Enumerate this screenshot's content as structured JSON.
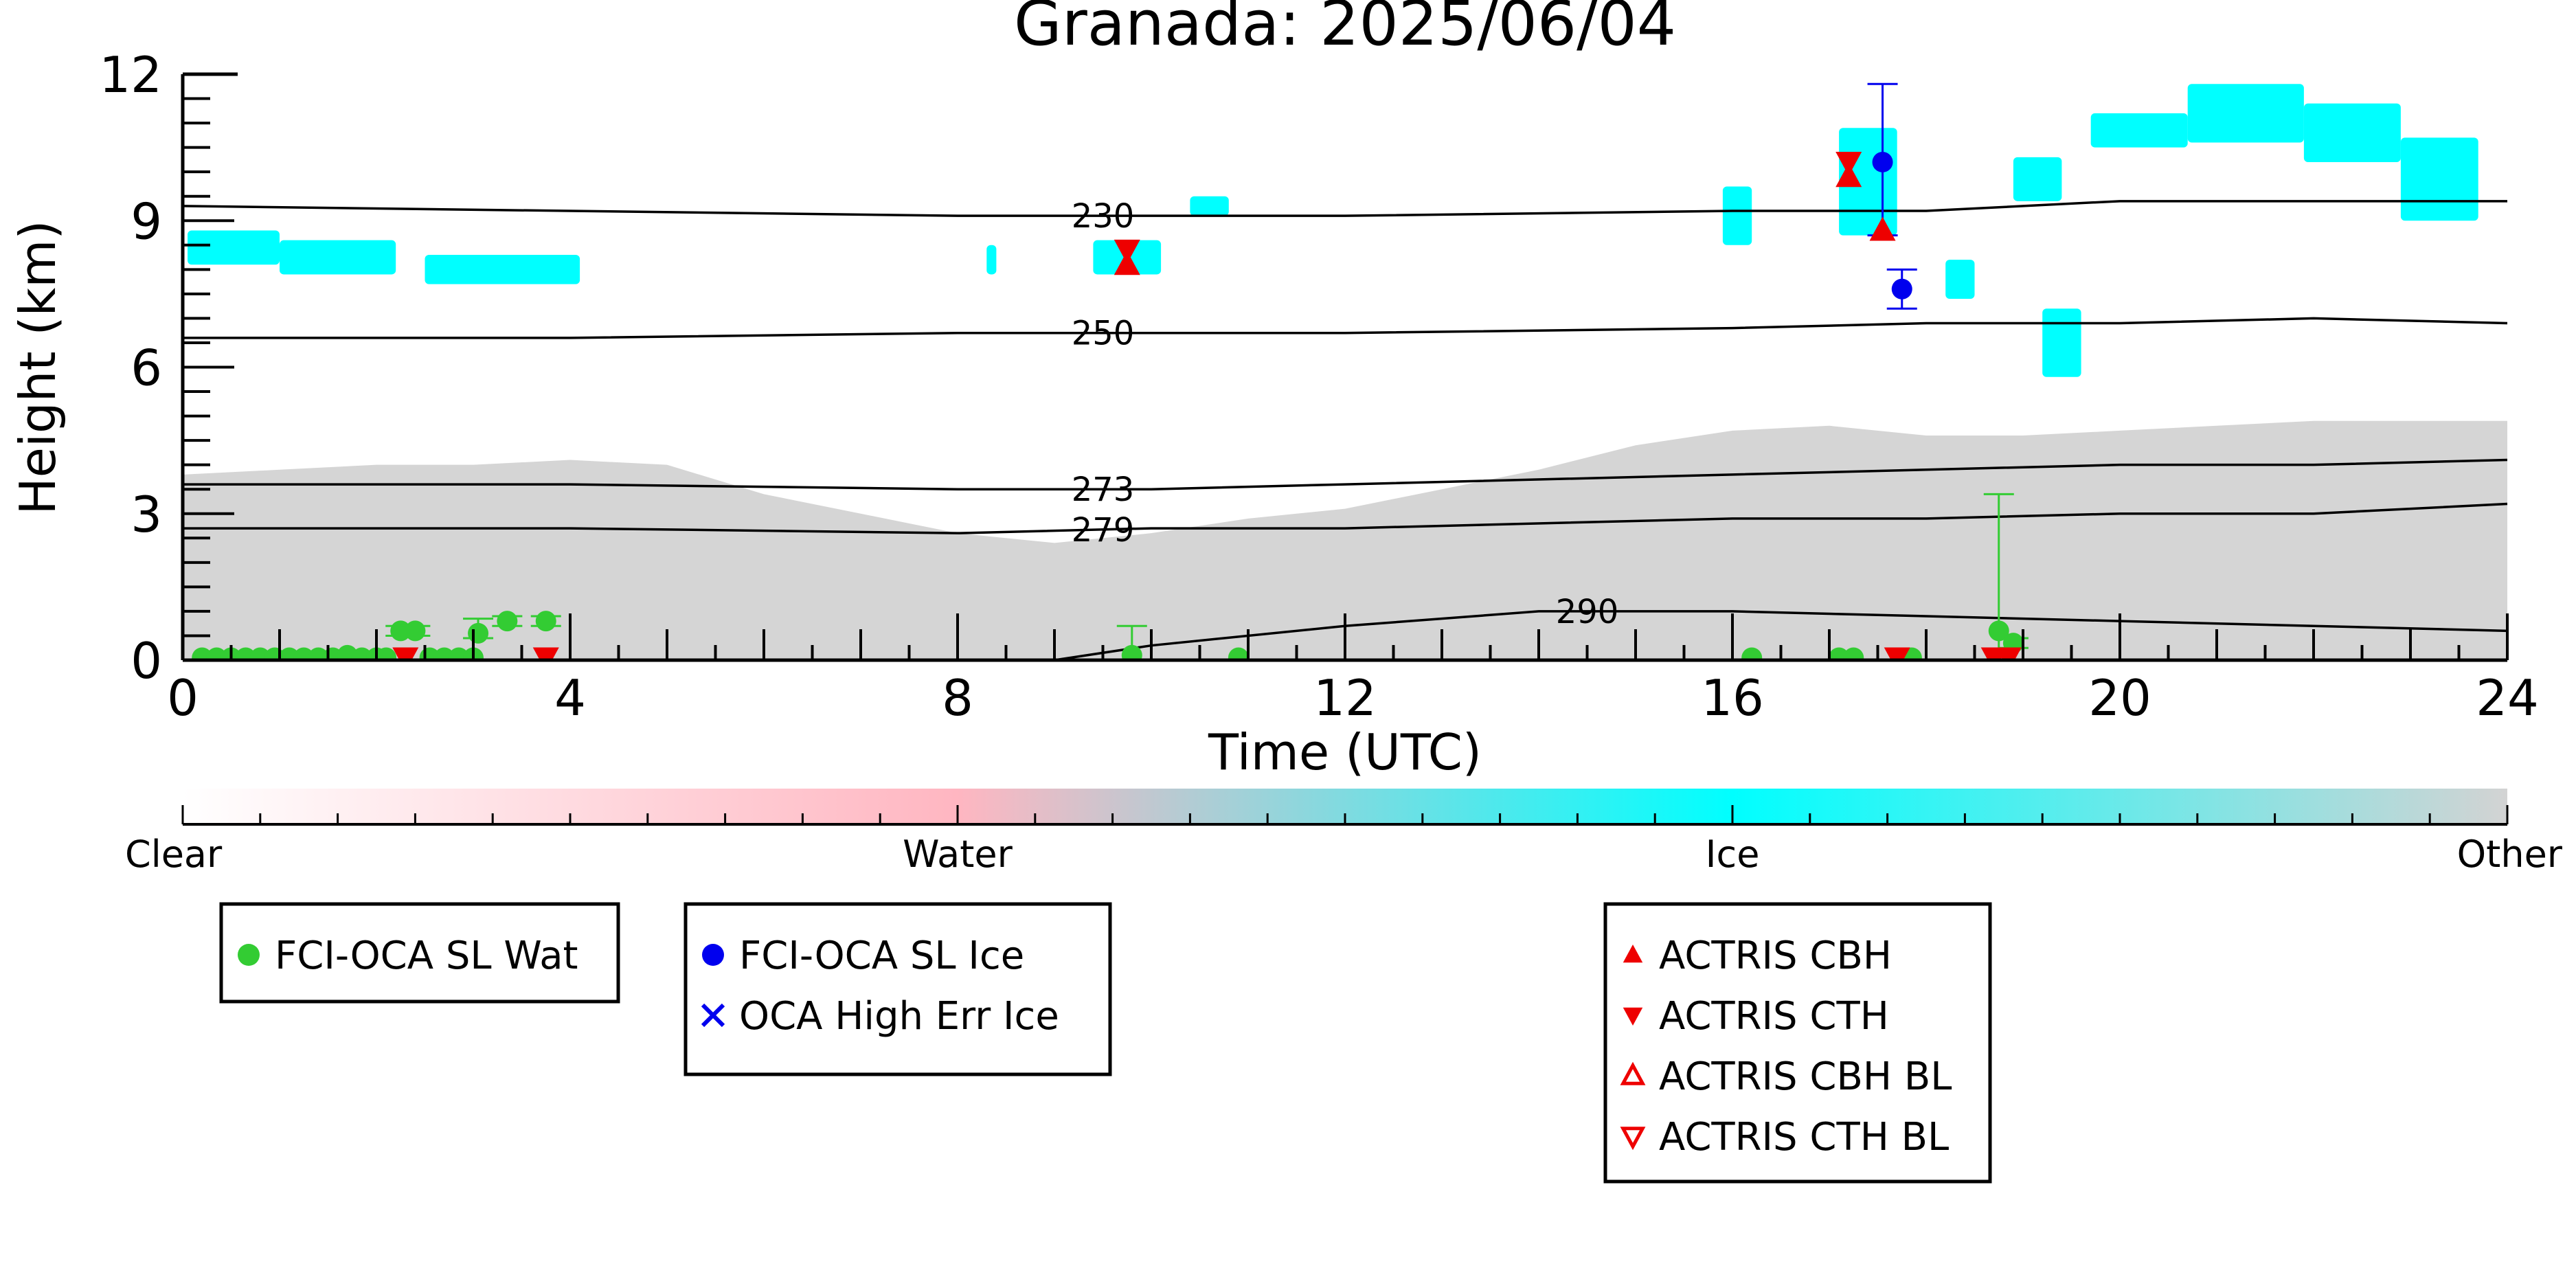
{
  "chart_data": {
    "type": "scatter",
    "title": "Granada: 2025/06/04",
    "xlabel": "Time (UTC)",
    "ylabel": "Height (km)",
    "xlim": [
      0,
      24
    ],
    "ylim": [
      0,
      12
    ],
    "x_ticks": [
      0,
      4,
      8,
      12,
      16,
      20,
      24
    ],
    "y_ticks": [
      0,
      3,
      6,
      9,
      12
    ],
    "background_classes": {
      "other_color": "#d3d3d3",
      "ice_color": "#00ffff",
      "other_regions": [
        {
          "x": [
            0,
            1,
            2,
            3,
            4,
            5,
            6,
            7,
            8,
            9,
            10,
            11,
            12,
            13,
            14,
            15,
            16,
            17,
            18,
            19,
            20,
            21,
            22,
            23,
            24
          ],
          "top": [
            3.8,
            3.9,
            4.0,
            4.0,
            4.1,
            4.0,
            3.4,
            3.0,
            2.6,
            2.4,
            2.6,
            2.9,
            3.1,
            3.5,
            3.9,
            4.4,
            4.7,
            4.8,
            4.6,
            4.6,
            4.7,
            4.8,
            4.9,
            4.9,
            4.9
          ]
        }
      ],
      "ice_regions": [
        {
          "x0": 0.05,
          "x1": 1.0,
          "y0": 8.1,
          "y1": 8.8
        },
        {
          "x0": 1.0,
          "x1": 2.2,
          "y0": 7.9,
          "y1": 8.6
        },
        {
          "x0": 2.5,
          "x1": 4.1,
          "y0": 7.7,
          "y1": 8.3
        },
        {
          "x0": 8.3,
          "x1": 8.4,
          "y0": 7.9,
          "y1": 8.5
        },
        {
          "x0": 9.4,
          "x1": 10.1,
          "y0": 7.9,
          "y1": 8.6
        },
        {
          "x0": 10.4,
          "x1": 10.8,
          "y0": 9.1,
          "y1": 9.5
        },
        {
          "x0": 15.9,
          "x1": 16.2,
          "y0": 8.5,
          "y1": 9.7
        },
        {
          "x0": 17.1,
          "x1": 17.7,
          "y0": 8.7,
          "y1": 10.9
        },
        {
          "x0": 18.9,
          "x1": 19.4,
          "y0": 9.4,
          "y1": 10.3
        },
        {
          "x0": 19.7,
          "x1": 20.7,
          "y0": 10.5,
          "y1": 11.2
        },
        {
          "x0": 20.7,
          "x1": 21.9,
          "y0": 10.6,
          "y1": 11.8
        },
        {
          "x0": 21.9,
          "x1": 22.9,
          "y0": 10.2,
          "y1": 11.4
        },
        {
          "x0": 22.9,
          "x1": 23.7,
          "y0": 9.0,
          "y1": 10.7
        },
        {
          "x0": 18.2,
          "x1": 18.5,
          "y0": 7.4,
          "y1": 8.2
        },
        {
          "x0": 19.2,
          "x1": 19.6,
          "y0": 5.8,
          "y1": 7.2
        }
      ]
    },
    "isotherms": [
      {
        "label": "230",
        "label_x": 9.5,
        "x": [
          0,
          4,
          8,
          10,
          12,
          16,
          18,
          20,
          22,
          24
        ],
        "y": [
          9.3,
          9.2,
          9.1,
          9.1,
          9.1,
          9.2,
          9.2,
          9.4,
          9.4,
          9.4
        ]
      },
      {
        "label": "250",
        "label_x": 9.5,
        "x": [
          0,
          4,
          8,
          10,
          12,
          16,
          18,
          20,
          22,
          24
        ],
        "y": [
          6.6,
          6.6,
          6.7,
          6.7,
          6.7,
          6.8,
          6.9,
          6.9,
          7.0,
          6.9
        ]
      },
      {
        "label": "273",
        "label_x": 9.5,
        "x": [
          0,
          4,
          8,
          10,
          12,
          16,
          18,
          20,
          22,
          24
        ],
        "y": [
          3.6,
          3.6,
          3.5,
          3.5,
          3.6,
          3.8,
          3.9,
          4.0,
          4.0,
          4.1
        ]
      },
      {
        "label": "279",
        "label_x": 9.5,
        "x": [
          0,
          4,
          8,
          10,
          12,
          16,
          18,
          20,
          22,
          24
        ],
        "y": [
          2.7,
          2.7,
          2.6,
          2.7,
          2.7,
          2.9,
          2.9,
          3.0,
          3.0,
          3.2
        ]
      },
      {
        "label": "290",
        "label_x": 14.5,
        "x": [
          0,
          8,
          9,
          10,
          12,
          14,
          16,
          18,
          20,
          22,
          24
        ],
        "y": [
          0,
          0,
          0.0,
          0.3,
          0.7,
          1.0,
          1.0,
          0.9,
          0.8,
          0.7,
          0.6
        ]
      }
    ],
    "series": [
      {
        "name": "FCI-OCA SL Wat",
        "color": "#33cc33",
        "marker": "circle",
        "x": [
          0.2,
          0.35,
          0.5,
          0.65,
          0.8,
          0.95,
          1.1,
          1.25,
          1.4,
          1.55,
          1.7,
          1.85,
          2.0,
          2.1,
          2.25,
          2.4,
          2.55,
          2.7,
          2.85,
          3.0,
          3.05,
          3.35,
          3.75,
          9.8,
          10.9,
          16.2,
          17.1,
          17.25,
          17.85,
          18.75,
          18.9
        ],
        "y": [
          0.05,
          0.05,
          0.05,
          0.05,
          0.05,
          0.05,
          0.05,
          0.05,
          0.05,
          0.05,
          0.1,
          0.05,
          0.05,
          0.05,
          0.6,
          0.6,
          0.05,
          0.05,
          0.05,
          0.05,
          0.55,
          0.8,
          0.8,
          0.1,
          0.05,
          0.05,
          0.05,
          0.05,
          0.05,
          0.6,
          0.35
        ],
        "err_low": [
          0,
          0,
          0,
          0,
          0,
          0,
          0,
          0,
          0,
          0,
          0,
          0,
          0,
          0,
          0.1,
          0.1,
          0,
          0,
          0,
          0,
          0.1,
          0.1,
          0.1,
          0.1,
          0,
          0,
          0,
          0,
          0,
          0.6,
          0.1
        ],
        "err_high": [
          0,
          0,
          0,
          0,
          0,
          0,
          0,
          0,
          0,
          0,
          0,
          0,
          0,
          0,
          0.1,
          0.1,
          0,
          0,
          0,
          0,
          0.3,
          0.1,
          0.1,
          0.6,
          0,
          0,
          0,
          0,
          0,
          2.8,
          0.1
        ]
      },
      {
        "name": "FCI-OCA SL Ice",
        "color": "#0000ee",
        "marker": "circle",
        "x": [
          17.55,
          17.75
        ],
        "y": [
          10.2,
          7.6
        ],
        "err_low": [
          1.5,
          0.4
        ],
        "err_high": [
          1.6,
          0.4
        ]
      },
      {
        "name": "OCA High Err Ice",
        "color": "#0000ee",
        "marker": "x",
        "x": [],
        "y": []
      },
      {
        "name": "ACTRIS CBH",
        "color": "#ee0000",
        "marker": "triangle-up",
        "x": [
          9.75,
          17.2,
          17.55
        ],
        "y": [
          8.1,
          9.9,
          8.8
        ]
      },
      {
        "name": "ACTRIS CTH",
        "color": "#ee0000",
        "marker": "triangle-down",
        "x": [
          9.75,
          17.2,
          2.3,
          3.75,
          17.7,
          18.7,
          18.85
        ],
        "y": [
          8.4,
          10.2,
          0.05,
          0.05,
          0.05,
          0.05,
          0.05
        ]
      },
      {
        "name": "ACTRIS CBH BL",
        "color": "#ee0000",
        "marker": "triangle-up-open",
        "x": [],
        "y": []
      },
      {
        "name": "ACTRIS CTH BL",
        "color": "#ee0000",
        "marker": "triangle-down-open",
        "x": [],
        "y": []
      }
    ],
    "colorbar": {
      "labels": [
        "Clear",
        "Water",
        "Ice",
        "Other"
      ],
      "positions": [
        0,
        1,
        2,
        3
      ],
      "colors": [
        "#ffffff",
        "#ffb6c1",
        "#00ffff",
        "#d3d3d3"
      ]
    },
    "legend": [
      {
        "group": "water",
        "entries": [
          {
            "label": "FCI-OCA SL Wat",
            "color": "#33cc33",
            "marker": "circle"
          }
        ]
      },
      {
        "group": "ice",
        "entries": [
          {
            "label": "FCI-OCA SL Ice",
            "color": "#0000ee",
            "marker": "circle"
          },
          {
            "label": "OCA High Err Ice",
            "color": "#0000ee",
            "marker": "x"
          }
        ]
      },
      {
        "group": "actris",
        "entries": [
          {
            "label": "ACTRIS CBH",
            "color": "#ee0000",
            "marker": "triangle-up"
          },
          {
            "label": "ACTRIS CTH",
            "color": "#ee0000",
            "marker": "triangle-down"
          },
          {
            "label": "ACTRIS CBH BL",
            "color": "#ee0000",
            "marker": "triangle-up-open"
          },
          {
            "label": "ACTRIS CTH BL",
            "color": "#ee0000",
            "marker": "triangle-down-open"
          }
        ]
      }
    ],
    "grid": false
  }
}
